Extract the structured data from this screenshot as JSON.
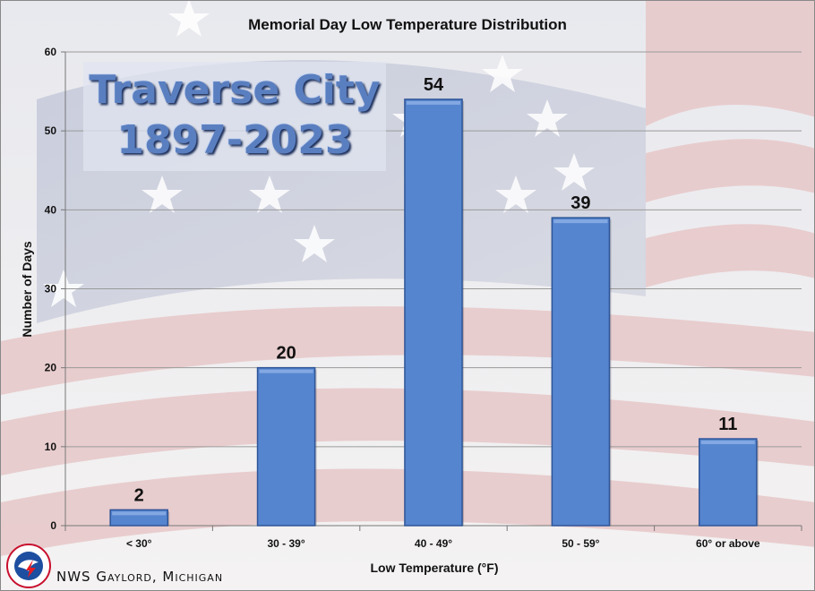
{
  "chart_data": {
    "type": "bar",
    "title": "Memorial Day Low Temperature Distribution",
    "subtitle": [
      "Traverse City",
      "1897-2023"
    ],
    "xlabel": "Low Temperature (°F)",
    "ylabel": "Number of Days",
    "categories": [
      "< 30°",
      "30 - 39°",
      "40 - 49°",
      "50 - 59°",
      "60° or above"
    ],
    "values": [
      2,
      20,
      54,
      39,
      11
    ],
    "ylim": [
      0,
      60
    ],
    "yticks": [
      0,
      10,
      20,
      30,
      40,
      50,
      60
    ],
    "grid": true,
    "bar_color": "#5585cf",
    "data_labels": true
  },
  "footer": "NWS Gaylord, Michigan",
  "logo": {
    "icon": "nws-logo-icon"
  }
}
